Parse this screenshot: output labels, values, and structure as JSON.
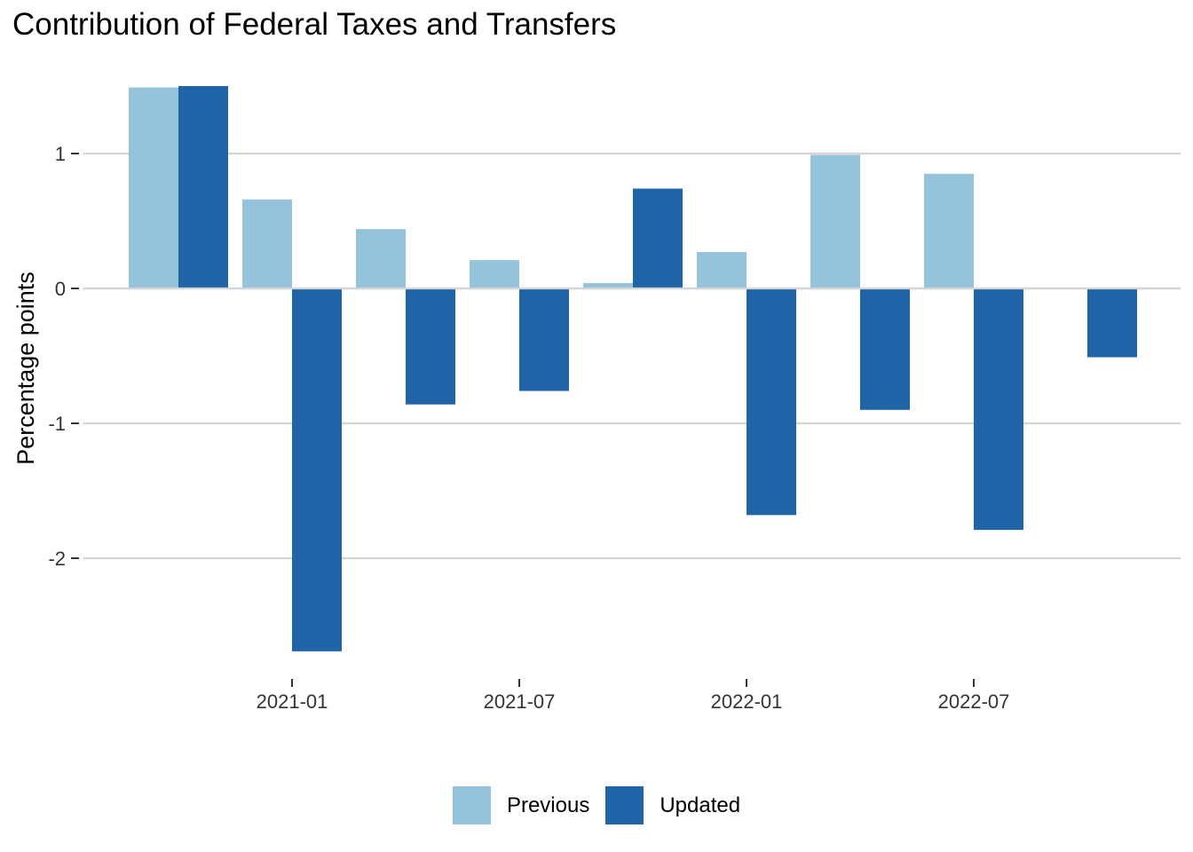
{
  "chart_data": {
    "type": "bar",
    "title": "Contribution of Federal Taxes and Transfers",
    "ylabel": "Percentage points",
    "xlabel": "",
    "x_tick_labels": [
      "2021-01",
      "2021-07",
      "2022-01",
      "2022-07"
    ],
    "x_tick_dates": [
      "2021-01-01",
      "2021-07-01",
      "2022-01-01",
      "2022-07-01"
    ],
    "y_ticks": [
      1,
      0,
      -1,
      -2
    ],
    "y_tick_labels": [
      "1",
      "0",
      "-1",
      "-2"
    ],
    "ylim": [
      -2.85,
      1.65
    ],
    "grid": "horizontal",
    "legend_position": "bottom",
    "categories": [
      "2020-10",
      "2021-01",
      "2021-04",
      "2021-07",
      "2021-10",
      "2022-01",
      "2022-04",
      "2022-07",
      "2022-10"
    ],
    "series": [
      {
        "name": "Previous",
        "color": "#96c3dc",
        "values": [
          1.49,
          0.66,
          0.44,
          0.21,
          0.04,
          0.27,
          0.99,
          0.85,
          null
        ]
      },
      {
        "name": "Updated",
        "color": "#1f64a6",
        "values": [
          1.5,
          -2.69,
          -0.86,
          -0.76,
          0.74,
          -1.68,
          -0.9,
          -1.79,
          -0.51
        ]
      }
    ]
  }
}
